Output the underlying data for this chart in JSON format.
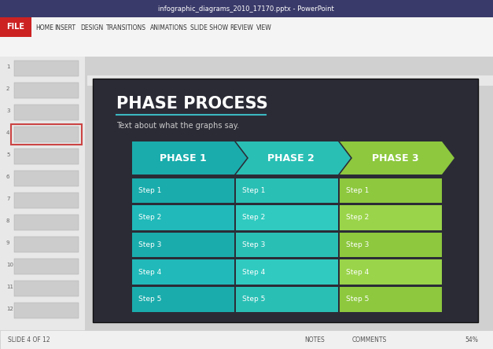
{
  "bg_outer": "#d0d0d0",
  "bg_topbar": "#2d2d6e",
  "bg_ribbon": "#f0f0f0",
  "slide_bg": "#2b2b36",
  "title": "PHASE PROCESS",
  "subtitle": "Text about what the graphs say.",
  "title_color": "#ffffff",
  "subtitle_color": "#cccccc",
  "title_underline_color": "#3cb8c0",
  "phases": [
    "PHASE 1",
    "PHASE 2",
    "PHASE 3"
  ],
  "phase_colors": [
    "#1aacac",
    "#2abfb5",
    "#8dc83e"
  ],
  "steps": [
    "Step 1",
    "Step 2",
    "Step 3",
    "Step 4",
    "Step 5"
  ],
  "col1_colors": [
    "#1aacac",
    "#21b9b9",
    "#1aacac",
    "#21b9b9",
    "#1aacac"
  ],
  "col2_colors": [
    "#2abfb5",
    "#30cac0",
    "#2abfb5",
    "#30cac0",
    "#2abfb5"
  ],
  "col3_colors": [
    "#8dc83e",
    "#9ad44a",
    "#8dc83e",
    "#9ad44a",
    "#8dc83e"
  ],
  "step_text_color": "#ffffff",
  "file_btn_color": "#cc3333",
  "tab_bg": "#f0f0f0"
}
